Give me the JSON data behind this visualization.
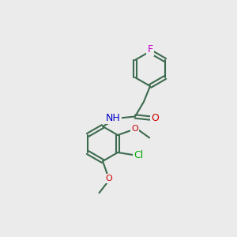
{
  "background_color": "#ebebeb",
  "bond_color": "#3d6b4f",
  "bond_width": 1.5,
  "atom_colors": {
    "N": "#0000cc",
    "O": "#cc0000",
    "F": "#cc00cc",
    "Cl": "#00aa00",
    "C": "#3d6b4f",
    "H": "#3d6b4f"
  },
  "font_size": 9,
  "font_size_small": 8
}
